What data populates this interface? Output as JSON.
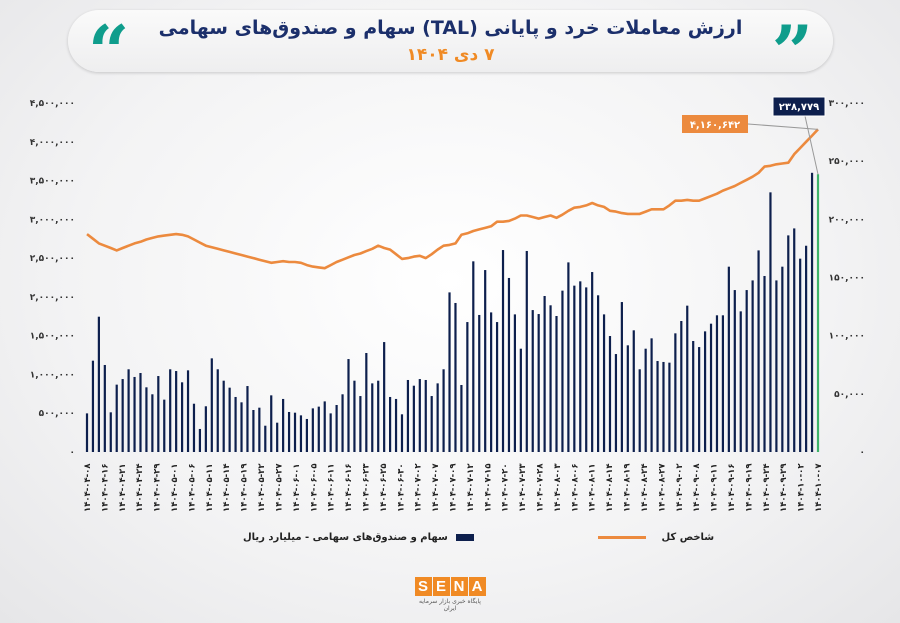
{
  "header": {
    "title": "ارزش معاملات خرد و پایانی (TAL) سهام و صندوق‌های سهامی",
    "subtitle": "۷ دی ۱۴۰۴",
    "quote_icon": "double-quote-icon"
  },
  "colors": {
    "bars": "#0d1f4d",
    "last_bar": "#3fb36b",
    "line": "#ec8a3e",
    "accent": "#0f9d8c",
    "brand": "#f08a24"
  },
  "chart_data": {
    "type": "bar+line",
    "title": "ارزش معاملات خرد و پایانی (TAL) سهام و صندوق‌های سهامی",
    "grid": false,
    "legend_placement": "bottom",
    "x_tick_labels": [
      "۱۴۰۴-۰۴-۰۸",
      "۱۴۰۴-۰۴-۱۶",
      "۱۴۰۴-۰۴-۲۱",
      "۱۴۰۴-۰۴-۲۴",
      "۱۴۰۴-۰۴-۲۹",
      "۱۴۰۴-۰۵-۰۱",
      "۱۴۰۴-۰۵-۰۶",
      "۱۴۰۴-۰۵-۱۱",
      "۱۴۰۴-۰۵-۱۴",
      "۱۴۰۴-۰۵-۱۹",
      "۱۴۰۴-۰۵-۲۲",
      "۱۴۰۴-۰۵-۲۷",
      "۱۴۰۴-۰۶-۰۱",
      "۱۴۰۴-۰۶-۰۵",
      "۱۴۰۴-۰۶-۱۱",
      "۱۴۰۴-۰۶-۱۶",
      "۱۴۰۴-۰۶-۲۳",
      "۱۴۰۴-۰۶-۲۵",
      "۱۴۰۴-۰۶-۳۰",
      "۱۴۰۴-۰۷-۰۲",
      "۱۴۰۴-۰۷-۰۷",
      "۱۴۰۴-۰۷-۰۹",
      "۱۴۰۴-۰۷-۱۲",
      "۱۴۰۴-۰۷-۱۵",
      "۱۴۰۴-۰۷-۲۰",
      "۱۴۰۴-۰۷-۲۳",
      "۱۴۰۴-۰۷-۲۸",
      "۱۴۰۴-۰۸-۰۳",
      "۱۴۰۴-۰۸-۰۶",
      "۱۴۰۴-۰۸-۱۱",
      "۱۴۰۴-۰۸-۱۴",
      "۱۴۰۴-۰۸-۱۹",
      "۱۴۰۴-۰۸-۲۴",
      "۱۴۰۴-۰۸-۲۷",
      "۱۴۰۴-۰۹-۰۲",
      "۱۴۰۴-۰۹-۰۸",
      "۱۴۰۴-۰۹-۱۱",
      "۱۴۰۴-۰۹-۱۶",
      "۱۴۰۴-۰۹-۱۹",
      "۱۴۰۴-۰۹-۲۴",
      "۱۴۰۴-۰۹-۲۹",
      "۱۴۰۴-۱۰-۰۲",
      "۱۴۰۴-۱۰-۰۷"
    ],
    "left_axis": {
      "range": [
        0,
        4500000
      ],
      "ticks": [
        "۰",
        "۵۰۰,۰۰۰",
        "۱,۰۰۰,۰۰۰",
        "۱,۵۰۰,۰۰۰",
        "۲,۰۰۰,۰۰۰",
        "۲,۵۰۰,۰۰۰",
        "۳,۰۰۰,۰۰۰",
        "۳,۵۰۰,۰۰۰",
        "۴,۰۰۰,۰۰۰",
        "۴,۵۰۰,۰۰۰"
      ]
    },
    "right_axis": {
      "range": [
        0,
        300000
      ],
      "ticks": [
        "۰",
        "۵۰,۰۰۰",
        "۱۰۰,۰۰۰",
        "۱۵۰,۰۰۰",
        "۲۰۰,۰۰۰",
        "۲۵۰,۰۰۰",
        "۳۰۰,۰۰۰"
      ]
    },
    "series": [
      {
        "name": "سهام و صندوق‌های سهامی - میلیارد ریال",
        "type": "bar",
        "axis": "right",
        "values": [
          33200,
          78500,
          116300,
          74800,
          34100,
          57900,
          62700,
          71100,
          64500,
          67900,
          55600,
          49600,
          65300,
          45000,
          71100,
          69600,
          59900,
          70200,
          41500,
          19800,
          39300,
          80500,
          71100,
          61300,
          55300,
          47300,
          42700,
          56700,
          36100,
          38100,
          22600,
          48700,
          25200,
          45600,
          34400,
          33800,
          31500,
          28400,
          37500,
          39000,
          43500,
          33200,
          40400,
          49600,
          79900,
          61300,
          48100,
          85100,
          59000,
          61300,
          94500,
          47300,
          45600,
          32400,
          61900,
          57000,
          62700,
          61900,
          48100,
          59000,
          71100,
          137200,
          128100,
          57600,
          111700,
          163900,
          117800,
          156400,
          120000,
          111700,
          173600,
          149600,
          118300,
          88800,
          172800,
          122000,
          118600,
          134100,
          126100,
          116900,
          138700,
          163000,
          143000,
          146700,
          141500,
          154700,
          134700,
          118300,
          99700,
          84200,
          128900,
          91700,
          104600,
          71100,
          88800,
          97700,
          78200,
          77400,
          76800,
          102000,
          112600,
          125800,
          95400,
          90200,
          103700,
          110300,
          117500,
          117500,
          159300,
          139200,
          120900,
          139200,
          147500,
          173300,
          151300,
          223200,
          147500,
          159300,
          186200,
          192200,
          166200,
          177300,
          240000,
          238779
        ]
      },
      {
        "name": "شاخص کل",
        "type": "line",
        "axis": "left",
        "values": [
          2810000,
          2750000,
          2690000,
          2660000,
          2630000,
          2600000,
          2630000,
          2660000,
          2690000,
          2710000,
          2740000,
          2760000,
          2780000,
          2790000,
          2800000,
          2810000,
          2800000,
          2780000,
          2740000,
          2700000,
          2660000,
          2640000,
          2620000,
          2600000,
          2580000,
          2560000,
          2540000,
          2520000,
          2500000,
          2480000,
          2460000,
          2440000,
          2450000,
          2460000,
          2450000,
          2450000,
          2440000,
          2410000,
          2390000,
          2380000,
          2370000,
          2410000,
          2450000,
          2480000,
          2510000,
          2540000,
          2560000,
          2590000,
          2620000,
          2660000,
          2630000,
          2610000,
          2550000,
          2490000,
          2500000,
          2520000,
          2530000,
          2500000,
          2550000,
          2610000,
          2660000,
          2670000,
          2690000,
          2800000,
          2820000,
          2850000,
          2870000,
          2890000,
          2910000,
          2970000,
          2970000,
          2980000,
          3010000,
          3050000,
          3050000,
          3030000,
          3010000,
          3030000,
          3050000,
          3020000,
          3060000,
          3110000,
          3150000,
          3160000,
          3180000,
          3210000,
          3180000,
          3160000,
          3110000,
          3100000,
          3080000,
          3070000,
          3070000,
          3070000,
          3100000,
          3130000,
          3130000,
          3130000,
          3180000,
          3240000,
          3240000,
          3250000,
          3240000,
          3240000,
          3270000,
          3300000,
          3330000,
          3370000,
          3400000,
          3430000,
          3470000,
          3510000,
          3550000,
          3600000,
          3680000,
          3690000,
          3710000,
          3720000,
          3730000,
          3840000,
          3920000,
          4000000,
          4080000,
          4160642
        ]
      }
    ],
    "annotations": {
      "last_index": "۴,۱۶۰,۶۴۲",
      "last_value": "۲۳۸,۷۷۹"
    }
  },
  "legend": {
    "bars_label": "سهام و صندوق‌های سهامی - میلیارد ریال",
    "line_label": "شاخص کل"
  },
  "logo": {
    "text": "SENA",
    "tagline": "پایگاه خبری بازار سرمایه ایران"
  }
}
